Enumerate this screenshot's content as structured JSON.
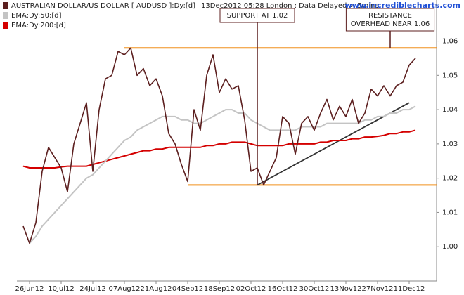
{
  "chart_data": {
    "type": "line",
    "subtitle": "13Dec2012 05:28 London : Data Delayed > 5mins",
    "watermark": "www.incrediblecharts.com",
    "categories": [
      null,
      "26Jun12",
      null,
      null,
      null,
      null,
      "10Jul12",
      null,
      null,
      null,
      null,
      "24Jul12",
      null,
      null,
      null,
      null,
      "07Aug12",
      null,
      null,
      null,
      null,
      "21Aug12",
      null,
      null,
      null,
      null,
      "04Sep12",
      null,
      null,
      null,
      null,
      "18Sep12",
      null,
      null,
      null,
      null,
      "02Oct12",
      null,
      null,
      null,
      null,
      "16Oct12",
      null,
      null,
      null,
      null,
      "30Oct12",
      null,
      null,
      null,
      null,
      "13Nov12",
      null,
      null,
      null,
      null,
      "27Nov12",
      null,
      null,
      null,
      null,
      "11Dec12",
      null
    ],
    "series": [
      {
        "name": "AUSTRALIAN DOLLAR/US DOLLAR [ AUDUSD ]:Dy:[d]",
        "color": "#5c1f1f",
        "width": 1.6,
        "values": [
          1.006,
          1.001,
          1.007,
          1.022,
          1.029,
          1.026,
          1.023,
          1.016,
          1.03,
          1.036,
          1.042,
          1.022,
          1.04,
          1.049,
          1.05,
          1.057,
          1.056,
          1.058,
          1.05,
          1.052,
          1.047,
          1.049,
          1.044,
          1.033,
          1.03,
          1.024,
          1.019,
          1.04,
          1.034,
          1.05,
          1.056,
          1.045,
          1.049,
          1.046,
          1.047,
          1.037,
          1.022,
          1.023,
          1.018,
          1.022,
          1.026,
          1.038,
          1.036,
          1.027,
          1.036,
          1.038,
          1.034,
          1.039,
          1.043,
          1.037,
          1.041,
          1.038,
          1.043,
          1.036,
          1.039,
          1.046,
          1.044,
          1.047,
          1.044,
          1.047,
          1.048,
          1.053,
          1.055
        ]
      },
      {
        "name": "EMA:Dy:50:[d]",
        "color": "#c4c4c4",
        "width": 2,
        "values": [
          null,
          1.001,
          1.003,
          1.006,
          1.008,
          1.01,
          1.012,
          1.014,
          1.016,
          1.018,
          1.02,
          1.021,
          1.023,
          1.025,
          1.027,
          1.029,
          1.031,
          1.032,
          1.034,
          1.035,
          1.036,
          1.037,
          1.038,
          1.038,
          1.038,
          1.037,
          1.037,
          1.036,
          1.036,
          1.037,
          1.038,
          1.039,
          1.04,
          1.04,
          1.039,
          1.039,
          1.037,
          1.036,
          1.035,
          1.034,
          1.034,
          1.034,
          1.034,
          1.034,
          1.035,
          1.035,
          1.035,
          1.035,
          1.036,
          1.036,
          1.036,
          1.036,
          1.036,
          1.036,
          1.037,
          1.037,
          1.038,
          1.038,
          1.039,
          1.039,
          1.04,
          1.04,
          1.041
        ]
      },
      {
        "name": "EMA:Dy:200:[d]",
        "color": "#d40000",
        "width": 2,
        "values": [
          1.0235,
          1.023,
          1.023,
          1.023,
          1.023,
          1.023,
          1.0233,
          1.0235,
          1.0235,
          1.0235,
          1.0235,
          1.024,
          1.0245,
          1.025,
          1.0255,
          1.026,
          1.0265,
          1.027,
          1.0275,
          1.028,
          1.028,
          1.0285,
          1.0285,
          1.029,
          1.029,
          1.029,
          1.029,
          1.029,
          1.029,
          1.0295,
          1.0295,
          1.03,
          1.03,
          1.0305,
          1.0305,
          1.0305,
          1.03,
          1.0295,
          1.0295,
          1.0295,
          1.0295,
          1.0295,
          1.03,
          1.03,
          1.03,
          1.03,
          1.03,
          1.0305,
          1.0305,
          1.031,
          1.031,
          1.031,
          1.0315,
          1.0315,
          1.032,
          1.032,
          1.0322,
          1.0325,
          1.033,
          1.033,
          1.0335,
          1.0335,
          1.034
        ]
      }
    ],
    "ylim": [
      0.99,
      1.072
    ],
    "yticks": [
      {
        "value": 1,
        "label": "1.00"
      },
      1.01,
      1.02,
      1.03,
      1.04,
      1.05,
      1.06
    ],
    "levels": [
      {
        "value": 1.058,
        "start": 16,
        "color": "#f0901e"
      },
      {
        "value": 1.018,
        "start": 26,
        "color": "#f0901e"
      }
    ],
    "trendline": {
      "start": [
        37,
        1.018
      ],
      "end": [
        61,
        1.042
      ],
      "color": "#333333"
    },
    "annotations": [
      {
        "lines": [
          "SUPPORT AT 1.02"
        ],
        "x": 37,
        "y": 1.018
      },
      {
        "lines": [
          "RESISTANCE",
          "OVERHEAD NEAR 1.06"
        ],
        "x": 58,
        "y": 1.058
      }
    ]
  }
}
